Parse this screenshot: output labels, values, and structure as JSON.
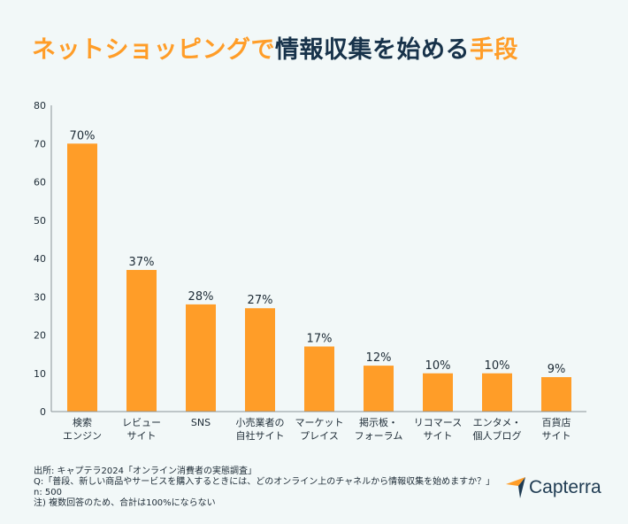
{
  "title": {
    "part1": "ネットショッピングで",
    "part2": "情報収集を始める",
    "part3": "手段"
  },
  "colors": {
    "accent": "#ff9d28",
    "dark": "#1d2b36",
    "background": "#f2f8f8"
  },
  "chart_data": {
    "type": "bar",
    "categories": [
      [
        "検索",
        "エンジン"
      ],
      [
        "レビュー",
        "サイト"
      ],
      [
        "SNS"
      ],
      [
        "小売業者の",
        "自社サイト"
      ],
      [
        "マーケット",
        "プレイス"
      ],
      [
        "掲示板・",
        "フォーラム"
      ],
      [
        "リコマース",
        "サイト"
      ],
      [
        "エンタメ・",
        "個人ブログ"
      ],
      [
        "百貨店",
        "サイト"
      ]
    ],
    "values": [
      70,
      37,
      28,
      27,
      17,
      12,
      10,
      10,
      9
    ],
    "data_labels": [
      "70%",
      "37%",
      "28%",
      "27%",
      "17%",
      "12%",
      "10%",
      "10%",
      "9%"
    ],
    "ylim": [
      0,
      80
    ],
    "yticks": [
      0,
      10,
      20,
      30,
      40,
      50,
      60,
      70,
      80
    ],
    "grid": false,
    "bar_color": "#ff9d28"
  },
  "notes": [
    "出所: キャプテラ2024「オンライン消費者の実態調査」",
    "Q:「普段、新しい商品やサービスを購入するときには、どのオンライン上のチャネルから情報収集を始めますか？」",
    "n: 500",
    "注)  複数回答のため、合計は100%にならない"
  ],
  "logo": {
    "text": "Capterra"
  }
}
